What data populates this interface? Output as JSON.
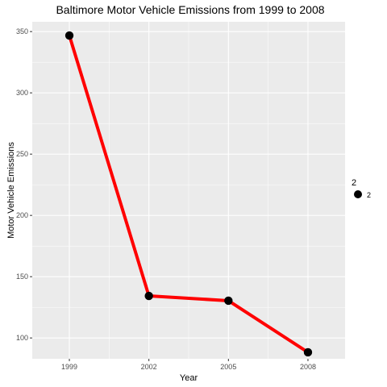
{
  "chart_data": {
    "type": "line",
    "title": "Baltimore Motor Vehicle Emissions from 1999 to 2008",
    "xlabel": "Year",
    "ylabel": "Motor Vehicle Emissions",
    "x": [
      1999,
      2002,
      2005,
      2008
    ],
    "series": [
      {
        "name": "2",
        "values": [
          346.8,
          134.3,
          130.4,
          88.3
        ]
      }
    ],
    "x_ticks": [
      "1999",
      "2002",
      "2005",
      "2008"
    ],
    "y_ticks": [
      100,
      150,
      200,
      250,
      300,
      350
    ],
    "xlim": [
      1997.6,
      2009.4
    ],
    "ylim": [
      83,
      358
    ],
    "grid": true,
    "legend": {
      "title": "2",
      "label": "2",
      "placement": "right"
    },
    "colors": {
      "line": "#ff0000",
      "point": "#000000",
      "panel": "#ebebeb",
      "grid": "#ffffff"
    }
  }
}
